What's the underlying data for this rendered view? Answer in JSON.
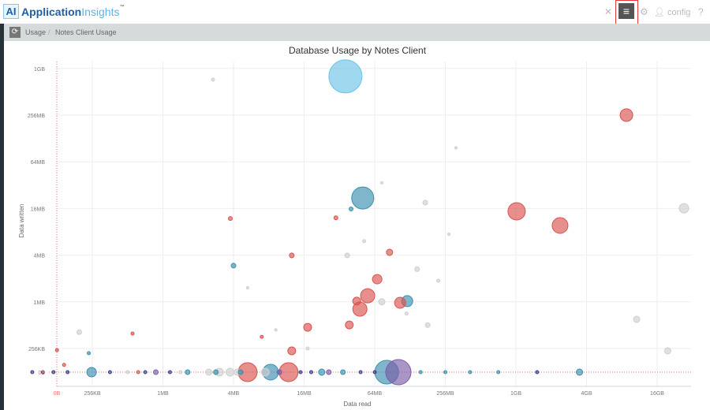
{
  "header": {
    "logo_mark": "AI",
    "logo_part1": "Application",
    "logo_part2": "Insights",
    "logo_tm": "™",
    "user": "config",
    "menu_icon": "hamburger-icon",
    "expand_icon": "expand-icon",
    "settings_icon": "gear-icon",
    "help_icon": "question-icon"
  },
  "breadcrumb": {
    "items": [
      "Usage",
      "Notes Client Usage"
    ],
    "separator": "/"
  },
  "chart_data": {
    "type": "scatter",
    "title": "Database Usage by Notes Client",
    "xlabel": "Data read",
    "ylabel": "Data written",
    "scale": "log2 bytes",
    "x_ticks": [
      {
        "label": "0B",
        "log2": null
      },
      {
        "label": "256KB",
        "log2": 18
      },
      {
        "label": "1MB",
        "log2": 20
      },
      {
        "label": "4MB",
        "log2": 22
      },
      {
        "label": "16MB",
        "log2": 24
      },
      {
        "label": "64MB",
        "log2": 26
      },
      {
        "label": "256MB",
        "log2": 28
      },
      {
        "label": "1GB",
        "log2": 30
      },
      {
        "label": "4GB",
        "log2": 32
      },
      {
        "label": "16GB",
        "log2": 34
      }
    ],
    "y_ticks": [
      {
        "label": "0B",
        "log2": null
      },
      {
        "label": "256KB",
        "log2": 18
      },
      {
        "label": "1MB",
        "log2": 20
      },
      {
        "label": "4MB",
        "log2": 22
      },
      {
        "label": "16MB",
        "log2": 24
      },
      {
        "label": "64MB",
        "log2": 26
      },
      {
        "label": "256MB",
        "log2": 28
      },
      {
        "label": "1GB",
        "log2": 30
      }
    ],
    "colors": {
      "blue": "#6cc3e6",
      "teal": "#3a8fb0",
      "red": "#d9534f",
      "gray": "#cfcfcf",
      "purple": "#7b5ea7",
      "navy": "#3c3d8f"
    },
    "points": [
      [
        25.17,
        29.66,
        21,
        "blue"
      ],
      [
        33.13,
        28.0,
        8,
        "red"
      ],
      [
        25.66,
        24.45,
        14,
        "teal"
      ],
      [
        30.02,
        23.88,
        11,
        "red"
      ],
      [
        31.25,
        23.27,
        10,
        "red"
      ],
      [
        34.76,
        24.01,
        6,
        "gray"
      ],
      [
        33.42,
        19.25,
        4,
        "gray"
      ],
      [
        34.3,
        17.9,
        4,
        "gray"
      ],
      [
        25.8,
        20.26,
        9,
        "red"
      ],
      [
        25.58,
        19.69,
        9,
        "red"
      ],
      [
        26.07,
        20.97,
        6,
        "red"
      ],
      [
        26.92,
        20.03,
        7,
        "teal"
      ],
      [
        26.72,
        19.96,
        7,
        "red"
      ],
      [
        25.49,
        20.03,
        5,
        "red"
      ],
      [
        25.28,
        19.01,
        5,
        "red"
      ],
      [
        26.42,
        22.12,
        4,
        "red"
      ],
      [
        24.1,
        18.91,
        5,
        "red"
      ],
      [
        23.65,
        17.9,
        5,
        "red"
      ],
      [
        23.65,
        21.99,
        3,
        "red"
      ],
      [
        22.0,
        21.55,
        3,
        "teal"
      ],
      [
        21.91,
        23.57,
        2.5,
        "red"
      ],
      [
        24.9,
        23.6,
        2.5,
        "red"
      ],
      [
        25.33,
        23.98,
        2.5,
        "teal"
      ],
      [
        27.43,
        24.25,
        3,
        "gray"
      ],
      [
        26.2,
        20.0,
        4,
        "gray"
      ],
      [
        27.2,
        21.4,
        3,
        "gray"
      ],
      [
        25.22,
        21.99,
        3,
        "gray"
      ],
      [
        21.42,
        29.52,
        2,
        "gray"
      ],
      [
        19.14,
        18.64,
        2,
        "red"
      ],
      [
        17.63,
        18.7,
        3,
        "gray"
      ],
      [
        17.0,
        17.93,
        2,
        "red"
      ],
      [
        17.9,
        17.8,
        2,
        "teal"
      ],
      [
        17.2,
        17.3,
        2,
        "red"
      ],
      [
        22.8,
        18.5,
        2,
        "red"
      ],
      [
        27.5,
        19.0,
        3,
        "gray"
      ],
      [
        26.9,
        19.5,
        2,
        "gray"
      ],
      [
        25.7,
        22.6,
        2,
        "gray"
      ],
      [
        28.3,
        26.6,
        1.5,
        "gray"
      ],
      [
        26.2,
        25.1,
        1.5,
        "gray"
      ],
      [
        24.1,
        18.0,
        2,
        "gray"
      ],
      [
        23.2,
        18.8,
        1.5,
        "gray"
      ],
      [
        22.4,
        20.6,
        1.5,
        "gray"
      ],
      [
        27.8,
        20.9,
        2,
        "gray"
      ],
      [
        28.1,
        22.9,
        1.5,
        "gray"
      ],
      [
        22.4,
        null,
        12,
        "red"
      ],
      [
        23.56,
        null,
        12,
        "red"
      ],
      [
        23.05,
        null,
        10,
        "teal"
      ],
      [
        26.34,
        null,
        15,
        "teal"
      ],
      [
        26.67,
        null,
        16,
        "purple"
      ],
      [
        17.98,
        null,
        6,
        "teal"
      ],
      [
        31.8,
        null,
        4,
        "teal"
      ],
      [
        21.3,
        null,
        4,
        "gray"
      ],
      [
        21.6,
        null,
        5,
        "gray"
      ],
      [
        21.9,
        null,
        5,
        "gray"
      ],
      [
        22.1,
        null,
        4,
        "gray"
      ],
      [
        22.9,
        null,
        5,
        "gray"
      ],
      [
        24.5,
        null,
        4,
        "teal"
      ],
      [
        25.1,
        null,
        3,
        "teal"
      ],
      [
        21.5,
        null,
        3,
        "teal"
      ],
      [
        19.8,
        null,
        3,
        "purple"
      ],
      [
        20.7,
        null,
        3,
        "teal"
      ],
      [
        24.7,
        null,
        3,
        "purple"
      ],
      [
        16.3,
        null,
        2,
        "navy"
      ],
      [
        16.6,
        null,
        2,
        "navy"
      ],
      [
        16.9,
        null,
        2,
        "navy"
      ],
      [
        17.3,
        null,
        2,
        "navy"
      ],
      [
        18.5,
        null,
        2,
        "navy"
      ],
      [
        19.0,
        null,
        2,
        "gray"
      ],
      [
        19.5,
        null,
        2,
        "navy"
      ],
      [
        20.2,
        null,
        2,
        "navy"
      ],
      [
        20.5,
        null,
        2,
        "gray"
      ],
      [
        23.9,
        null,
        2,
        "navy"
      ],
      [
        24.2,
        null,
        2,
        "navy"
      ],
      [
        25.6,
        null,
        2,
        "navy"
      ],
      [
        27.3,
        null,
        2,
        "teal"
      ],
      [
        28.0,
        null,
        2,
        "teal"
      ],
      [
        28.7,
        null,
        2,
        "teal"
      ],
      [
        29.5,
        null,
        2,
        "teal"
      ],
      [
        30.6,
        null,
        2,
        "navy"
      ],
      [
        26.0,
        null,
        2,
        "navy"
      ],
      [
        23.3,
        null,
        3,
        "purple"
      ],
      [
        22.2,
        null,
        3,
        "teal"
      ],
      [
        19.3,
        null,
        2,
        "red"
      ]
    ]
  }
}
